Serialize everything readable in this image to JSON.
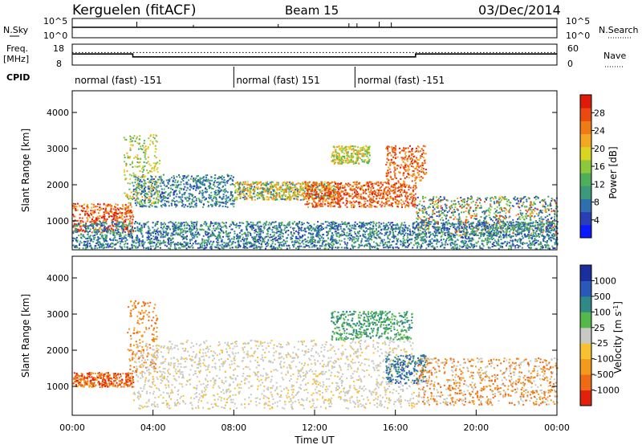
{
  "header": {
    "station": "Kerguelen (fitACF)",
    "beam": "Beam 15",
    "date": "03/Dec/2014"
  },
  "chart_data": [
    {
      "panel": "noise",
      "type": "line",
      "left_label": "N.Sky",
      "right_label": "N.Search",
      "left_ticks": [
        "10^5",
        "10^0"
      ],
      "right_ticks": [
        "10^5",
        "10^0"
      ]
    },
    {
      "panel": "frequency",
      "type": "line",
      "left_label_lines": [
        "Freq.",
        "[MHz]"
      ],
      "right_label": "Nave",
      "left_ticks": [
        "18",
        "8"
      ],
      "right_ticks": [
        "60",
        "0"
      ],
      "series": [
        {
          "x": [
            0,
            3.0,
            3.0,
            17.0,
            17.0,
            24.0
          ],
          "y": [
            13.3,
            13.3,
            11.9,
            11.9,
            13.3,
            13.3
          ]
        },
        {
          "x": [
            0,
            3.0,
            3.0,
            17.0,
            17.0,
            24.0
          ],
          "y": [
            14.0,
            14.0,
            14.0,
            14.0,
            14.0,
            14.0
          ]
        }
      ]
    },
    {
      "panel": "cpid",
      "type": "table",
      "label": "CPID",
      "segments": [
        {
          "start": 0.0,
          "end": 8.0,
          "text": "normal (fast) -151"
        },
        {
          "start": 8.0,
          "end": 14.0,
          "text": "normal (fast) 151"
        },
        {
          "start": 14.0,
          "end": 24.0,
          "text": "normal (fast) -151"
        }
      ]
    },
    {
      "panel": "power",
      "type": "heatmap",
      "ylabel": "Slant Range [km]",
      "y_ticks": [
        1000,
        2000,
        3000,
        4000
      ],
      "ylim": [
        200,
        4600
      ],
      "xlim": [
        0,
        24
      ],
      "colorbar_label": "Power [dB]",
      "colorbar_ticks": [
        "4",
        "8",
        "12",
        "16",
        "20",
        "24",
        "28"
      ],
      "colorbar_colors": [
        "#0a1aff",
        "#2a3fb5",
        "#2e6fb0",
        "#3a9a7a",
        "#4fae5a",
        "#8cc83c",
        "#d9d521",
        "#f5a623",
        "#f07a14",
        "#e84a10",
        "#e01a0a"
      ]
    },
    {
      "panel": "velocity",
      "type": "heatmap",
      "ylabel": "Slant Range [km]",
      "xlabel": "Time UT",
      "y_ticks": [
        1000,
        2000,
        3000,
        4000
      ],
      "ylim": [
        200,
        4600
      ],
      "xlim": [
        0,
        24
      ],
      "x_ticks": [
        "00:00",
        "04:00",
        "08:00",
        "12:00",
        "16:00",
        "20:00",
        "00:00"
      ],
      "colorbar_label": "Velocity [m s",
      "colorbar_label_sup": "-1",
      "colorbar_label_end": "]",
      "colorbar_ticks": [
        "1000",
        "500",
        "100",
        "25",
        "-25",
        "-100",
        "-500",
        "-1000"
      ],
      "colorbar_colors": [
        "#1a2e9e",
        "#2a58b8",
        "#2f8a86",
        "#56b84a",
        "#c8c8c4",
        "#f7c232",
        "#f39a1c",
        "#ef6a14",
        "#e0220c"
      ]
    }
  ]
}
